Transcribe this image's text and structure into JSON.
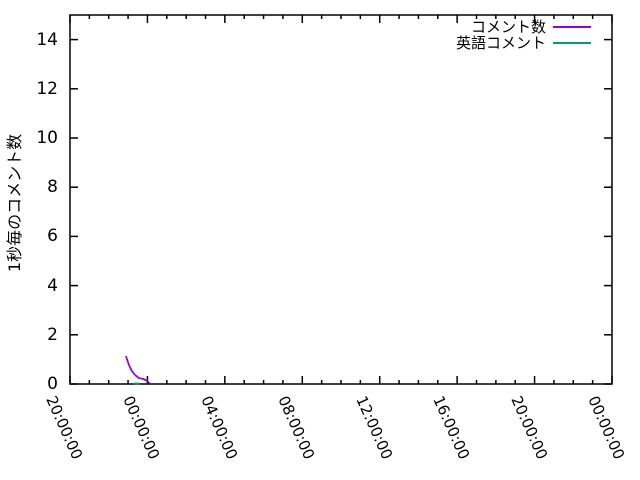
{
  "chart_data": {
    "type": "line",
    "title": "",
    "xlabel": "",
    "ylabel": "1秒毎のコメント数",
    "grid": false,
    "legend_position": "top-right",
    "xlim_hours": [
      0,
      28
    ],
    "ylim": [
      0,
      15
    ],
    "y_ticks": [
      0,
      2,
      4,
      6,
      8,
      10,
      12,
      14
    ],
    "x_tick_labels": [
      "20:00:00",
      "00:00:00",
      "04:00:00",
      "08:00:00",
      "12:00:00",
      "16:00:00",
      "20:00:00",
      "00:00:00"
    ],
    "x_tick_hours": [
      0,
      4,
      8,
      12,
      16,
      20,
      24,
      28
    ],
    "x_minor_tick_every_hours": 1,
    "axis_color": "#000000",
    "background_color": "#ffffff",
    "series": [
      {
        "name": "コメント数",
        "color": "#9400d3",
        "points": [
          [
            2.89,
            1.14
          ],
          [
            3.05,
            0.77
          ],
          [
            3.2,
            0.53
          ],
          [
            3.36,
            0.37
          ],
          [
            3.56,
            0.24
          ],
          [
            3.82,
            0.2
          ],
          [
            3.98,
            0.12
          ],
          [
            4.13,
            0.02
          ]
        ]
      },
      {
        "name": "英語コメント",
        "color": "#009e73",
        "points": [
          [
            3.31,
            0.02
          ],
          [
            3.57,
            0.02
          ]
        ]
      }
    ]
  }
}
